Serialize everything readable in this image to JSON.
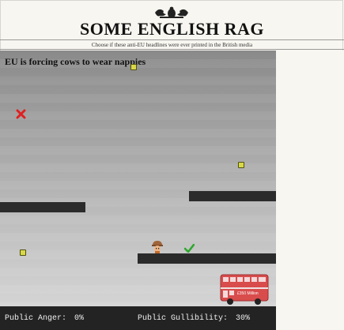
{
  "masthead": {
    "title": "SOME ENGLISH RAG",
    "tagline": "Choose if these anti-EU headlines were ever printed in the British media"
  },
  "game": {
    "headline": "EU is forcing cows to wear nappies",
    "bus_destination": "£350 Million"
  },
  "status": {
    "anger_label": "Public Anger:",
    "anger_value": "0%",
    "gullibility_label": "Public Gullibility:",
    "gullibility_value": "30%"
  },
  "colors": {
    "reject": "#e02020",
    "accept": "#2ea82e",
    "bus": "#d94c4c",
    "coin": "#d8d84a"
  },
  "icons": {
    "reject": "red-x-icon",
    "accept": "green-check-icon",
    "crest": "royal-crest-icon"
  }
}
